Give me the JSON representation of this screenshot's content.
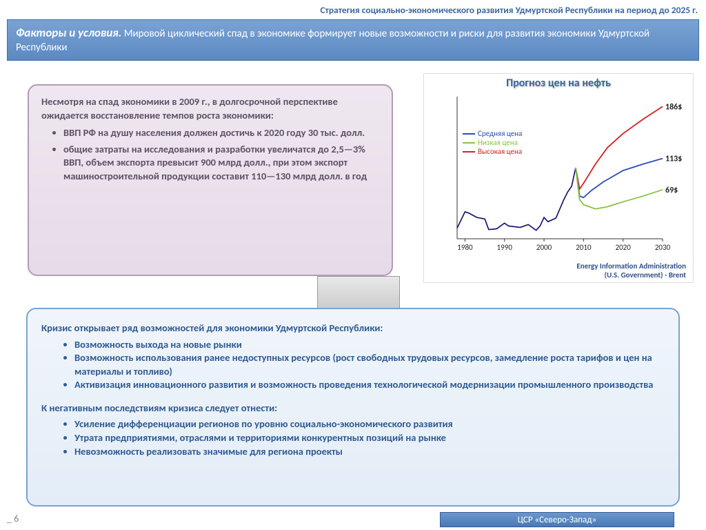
{
  "header": "Стратегия социально-экономического развития Удмуртской Республики на период до 2025 г.",
  "banner": {
    "lead": "Факторы и условия.",
    "rest": "Мировой циклический спад в экономике формирует новые возможности и риски для развития экономики Удмуртской Республики"
  },
  "purple": {
    "intro": "Несмотря на спад экономики в 2009 г., в долгосрочной перспективе ожидается восстановление темпов роста экономики:",
    "items": [
      "ВВП РФ на душу населения должен достичь к 2020 году 30 тыс. долл.",
      "общие затраты на исследования и разработки увеличатся до 2,5—3% ВВП, объем экспорта превысит 900 млрд долл., при этом экспорт машиностроительной продукции составит 110—130 млрд долл. в год"
    ],
    "bg": "#e9dfeb",
    "border": "#b29ab9",
    "text": "#5e5066"
  },
  "chart": {
    "type": "line",
    "title": "Прогноз цен на нефть",
    "xticks": [
      1980,
      1990,
      2000,
      2010,
      2020,
      2030
    ],
    "xlim": [
      1978,
      2030
    ],
    "ylim": [
      0,
      200
    ],
    "grid_color": "#bbbbbb",
    "background_color": "#ffffff",
    "labels_end": {
      "high": "186$",
      "mid": "113$",
      "low": "69$"
    },
    "legend": [
      {
        "name": "Средняя цена",
        "color": "#2b4db8"
      },
      {
        "name": "Низкая цена",
        "color": "#86c440"
      },
      {
        "name": "Высокая цена",
        "color": "#d81e1e"
      }
    ],
    "historical_color": "#0b0b6b",
    "historical": [
      [
        1978,
        15
      ],
      [
        1980,
        38
      ],
      [
        1981,
        36
      ],
      [
        1983,
        30
      ],
      [
        1985,
        28
      ],
      [
        1986,
        13
      ],
      [
        1988,
        14
      ],
      [
        1990,
        22
      ],
      [
        1991,
        18
      ],
      [
        1994,
        16
      ],
      [
        1996,
        20
      ],
      [
        1998,
        12
      ],
      [
        1999,
        18
      ],
      [
        2000,
        30
      ],
      [
        2001,
        24
      ],
      [
        2003,
        29
      ],
      [
        2005,
        55
      ],
      [
        2006,
        66
      ],
      [
        2007,
        74
      ],
      [
        2008,
        100
      ]
    ],
    "series": {
      "mid": {
        "color": "#2b4db8",
        "points": [
          [
            2008,
            100
          ],
          [
            2009,
            60
          ],
          [
            2010,
            58
          ],
          [
            2012,
            68
          ],
          [
            2015,
            80
          ],
          [
            2020,
            96
          ],
          [
            2025,
            105
          ],
          [
            2030,
            113
          ]
        ]
      },
      "low": {
        "color": "#86c440",
        "points": [
          [
            2008,
            100
          ],
          [
            2009,
            55
          ],
          [
            2010,
            48
          ],
          [
            2013,
            42
          ],
          [
            2016,
            45
          ],
          [
            2020,
            52
          ],
          [
            2025,
            60
          ],
          [
            2030,
            69
          ]
        ]
      },
      "high": {
        "color": "#d81e1e",
        "points": [
          [
            2008,
            100
          ],
          [
            2009,
            70
          ],
          [
            2010,
            78
          ],
          [
            2013,
            105
          ],
          [
            2016,
            128
          ],
          [
            2020,
            148
          ],
          [
            2025,
            168
          ],
          [
            2030,
            186
          ]
        ]
      }
    },
    "source_l1": "Energy Information Administration",
    "source_l2": "(U.S. Government) - Brent",
    "title_fontsize": 16,
    "axis_fontsize": 11
  },
  "lower": {
    "pos_head": "Кризис открывает ряд возможностей для экономики Удмуртской Республики:",
    "pos_items": [
      "Возможность выхода на новые рынки",
      "Возможность использования ранее недоступных ресурсов (рост свободных трудовых ресурсов, замедление роста тарифов и цен на материалы и топливо)",
      "Активизация инновационного развития и возможность проведения технологической модернизации промышленного производства"
    ],
    "neg_head": "К негативным последствиям кризиса следует отнести:",
    "neg_items": [
      "Усиление дифференциации регионов по уровню социально-экономического развития",
      "Утрата предприятиями, отраслями и территориями конкурентных позиций на рынке",
      "Невозможность реализовать значимые для региона проекты"
    ],
    "bg": "#e9f1fa",
    "border": "#7aa3d4",
    "text": "#2e5a93"
  },
  "footer": {
    "page_marker": "_ 6",
    "badge": "ЦСР «Северо-Запад»"
  }
}
